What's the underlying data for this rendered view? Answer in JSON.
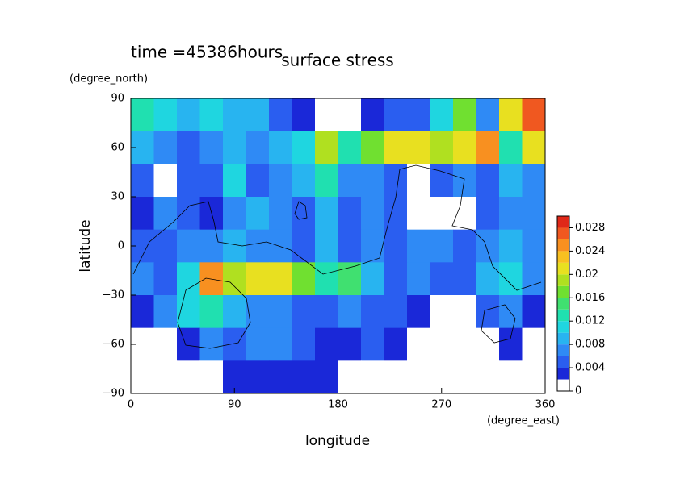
{
  "chart_data": {
    "type": "contour",
    "title": "surface stress",
    "subtitle": "time =45386hours",
    "x_label": "longitude",
    "x_unit": "(degree_east)",
    "y_label": "latitude",
    "y_unit": "(degree_north)",
    "x": [
      10,
      30,
      50,
      70,
      90,
      110,
      130,
      150,
      170,
      190,
      210,
      230,
      250,
      270,
      290,
      310,
      330,
      350
    ],
    "y": [
      80,
      60,
      40,
      20,
      0,
      -20,
      -40,
      -60,
      -80
    ],
    "z": [
      [
        0.012,
        0.01,
        0.008,
        0.01,
        0.008,
        0.008,
        0.004,
        0.002,
        0,
        0,
        0.002,
        0.004,
        0.004,
        0.01,
        0.016,
        0.006,
        0.02,
        0.026
      ],
      [
        0.008,
        0.006,
        0.004,
        0.006,
        0.008,
        0.006,
        0.008,
        0.01,
        0.018,
        0.012,
        0.016,
        0.02,
        0.02,
        0.018,
        0.02,
        0.024,
        0.012,
        0.02
      ],
      [
        0.004,
        0.001,
        0.004,
        0.004,
        0.01,
        0.004,
        0.006,
        0.008,
        0.012,
        0.006,
        0.006,
        0.004,
        0.001,
        0.004,
        0.006,
        0.004,
        0.008,
        0.006
      ],
      [
        0.003,
        0.006,
        0.004,
        0.002,
        0.006,
        0.008,
        0.006,
        0.004,
        0.008,
        0.004,
        0.006,
        0.004,
        0.001,
        0.001,
        0.001,
        0.004,
        0.006,
        0.006
      ],
      [
        0.004,
        0.004,
        0.006,
        0.006,
        0.008,
        0.006,
        0.006,
        0.004,
        0.008,
        0.004,
        0.006,
        0.004,
        0.006,
        0.006,
        0.004,
        0.006,
        0.008,
        0.006
      ],
      [
        0.006,
        0.004,
        0.01,
        0.024,
        0.018,
        0.02,
        0.02,
        0.016,
        0.012,
        0.014,
        0.008,
        0.004,
        0.006,
        0.004,
        0.004,
        0.008,
        0.01,
        0.006
      ],
      [
        0.002,
        0.006,
        0.01,
        0.012,
        0.008,
        0.006,
        0.006,
        0.004,
        0.004,
        0.006,
        0.004,
        0.004,
        0.002,
        0.001,
        0.001,
        0.004,
        0.006,
        0.002
      ],
      [
        0.001,
        0.001,
        0.002,
        0.006,
        0.004,
        0.006,
        0.006,
        0.004,
        0.002,
        0.002,
        0.004,
        0.002,
        0.001,
        0,
        0,
        0.001,
        0.002,
        0
      ],
      [
        0,
        0,
        0,
        0,
        0.003,
        0.003,
        0.003,
        0.002,
        0.002,
        0,
        0,
        0,
        0,
        0,
        0,
        0,
        0,
        0
      ]
    ],
    "xlim": [
      0,
      360
    ],
    "xticks": [
      0,
      90,
      180,
      270,
      360
    ],
    "ylim": [
      -90,
      90
    ],
    "yticks": [
      {
        "value": -90,
        "label": "−90"
      },
      {
        "value": -60,
        "label": "−60"
      },
      {
        "value": -30,
        "label": "−30"
      },
      0,
      30,
      60,
      90
    ],
    "levels": [
      0,
      0.002,
      0.004,
      0.006,
      0.008,
      0.01,
      0.012,
      0.014,
      0.016,
      0.018,
      0.02,
      0.022,
      0.024,
      0.026,
      0.028,
      0.03
    ],
    "colors": [
      "#ffffff",
      "#1a28d8",
      "#2a5ef0",
      "#2f8af5",
      "#28b4f0",
      "#1fd6e0",
      "#20e0b0",
      "#40e070",
      "#70e030",
      "#b0e020",
      "#e8e020",
      "#f8c020",
      "#f89020",
      "#f05820",
      "#e02818"
    ],
    "clim": [
      0,
      0.03
    ],
    "cticks": [
      0,
      0.004,
      0.008,
      0.012,
      0.016,
      0.02,
      0.024,
      0.028
    ]
  }
}
